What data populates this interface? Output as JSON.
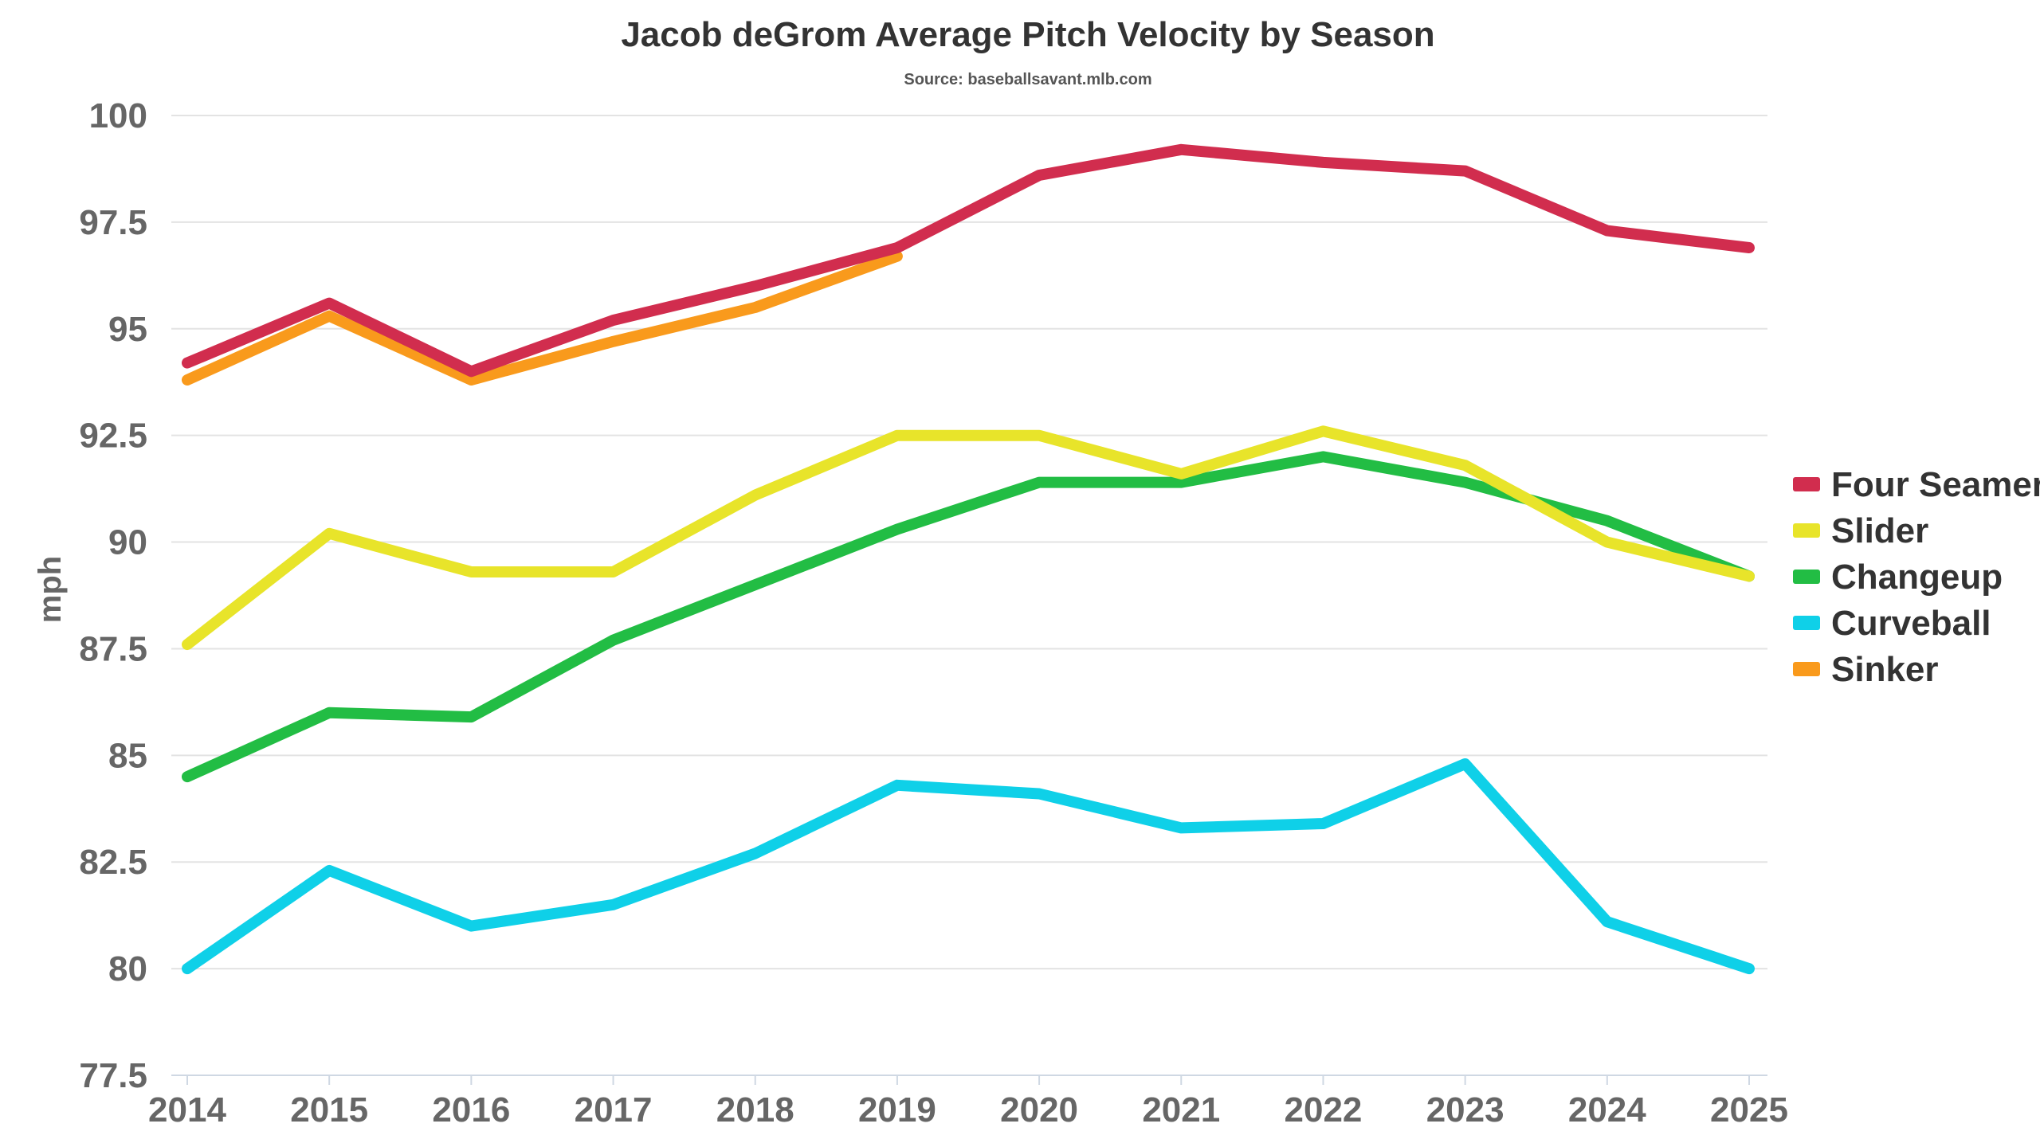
{
  "chart_data": {
    "type": "line",
    "title": "Jacob deGrom Average Pitch Velocity by Season",
    "subtitle": "Source: baseballsavant.mlb.com",
    "xlabel": "",
    "ylabel": "mph",
    "x": [
      "2014",
      "2015",
      "2016",
      "2017",
      "2018",
      "2019",
      "2020",
      "2021",
      "2022",
      "2023",
      "2024",
      "2025"
    ],
    "ylim": [
      77.5,
      100
    ],
    "yticks": [
      "77.5",
      "80",
      "82.5",
      "85",
      "87.5",
      "90",
      "92.5",
      "95",
      "97.5",
      "100"
    ],
    "grid": true,
    "legend_position": "right",
    "series": [
      {
        "name": "Four Seamer",
        "color": "#d12d4e",
        "values": [
          94.2,
          95.6,
          94.0,
          95.2,
          96.0,
          96.9,
          98.6,
          99.2,
          98.9,
          98.7,
          97.3,
          96.9
        ]
      },
      {
        "name": "Slider",
        "color": "#e8e42a",
        "values": [
          87.6,
          90.2,
          89.3,
          89.3,
          91.1,
          92.5,
          92.5,
          91.6,
          92.6,
          91.8,
          90.0,
          89.2
        ]
      },
      {
        "name": "Changeup",
        "color": "#22bd44",
        "values": [
          84.5,
          86.0,
          85.9,
          87.7,
          89.0,
          90.3,
          91.4,
          91.4,
          92.0,
          91.4,
          90.5,
          89.2
        ]
      },
      {
        "name": "Curveball",
        "color": "#0fd0e8",
        "values": [
          80.0,
          82.3,
          81.0,
          81.5,
          82.7,
          84.3,
          84.1,
          83.3,
          83.4,
          84.8,
          81.1,
          80.0
        ]
      },
      {
        "name": "Sinker",
        "color": "#f99a1c",
        "values": [
          93.8,
          95.3,
          93.8,
          94.7,
          95.5,
          96.7,
          null,
          null,
          null,
          null,
          null,
          null
        ]
      }
    ]
  }
}
